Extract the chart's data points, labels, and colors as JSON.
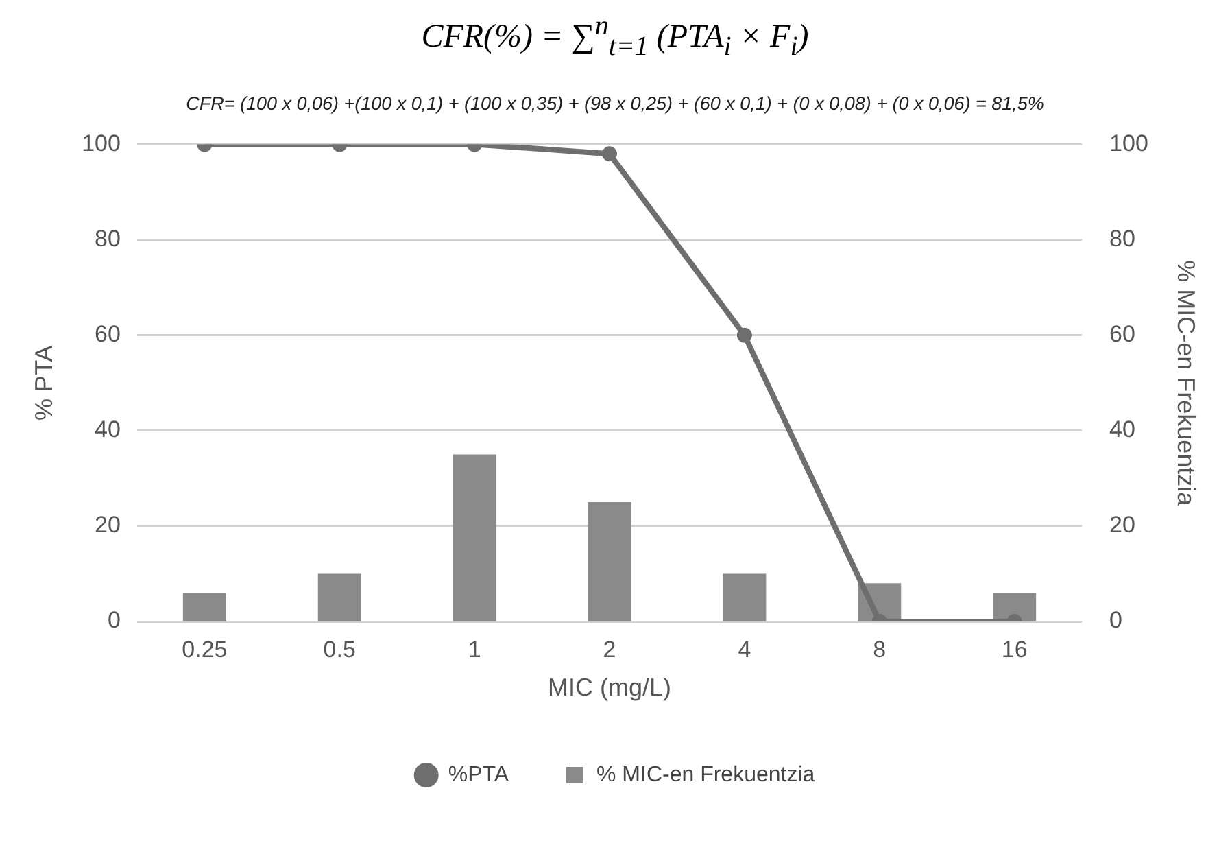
{
  "chart_data": {
    "type": "bar",
    "title": "CFR(%) = ∑$^{n}$$_{t=1}$ (PTA$_{i}$ × F$_{i}$)",
    "subtitle": "CFR= (100 x 0,06) +(100 x 0,1) + (100 x 0,35) + (98 x 0,25) + (60 x 0,1) + (0 x 0,08) + (0 x 0,06) = 81,5%",
    "xlabel": "MIC (mg/L)",
    "ylabel": "% PTA",
    "y2label": "% MIC-en Frekuentzia",
    "categories": [
      "0.25",
      "0.5",
      "1",
      "2",
      "4",
      "8",
      "16"
    ],
    "series": [
      {
        "name": "% MIC-en Frekuentzia",
        "axis": "y2",
        "color": "#8a8a8a",
        "values": [
          6,
          10,
          35,
          25,
          10,
          8,
          6
        ]
      },
      {
        "name": "%PTA",
        "type": "line",
        "axis": "y",
        "color": "#6e6e6e",
        "values": [
          100,
          100,
          100,
          98,
          60,
          0,
          0
        ]
      }
    ],
    "ylim": [
      0,
      100
    ],
    "yticks": [
      0,
      20,
      40,
      60,
      80,
      100
    ],
    "y2lim": [
      0,
      100
    ],
    "y2ticks": [
      0,
      20,
      40,
      60,
      80,
      100
    ],
    "grid": "y",
    "legend": "bottom",
    "marker": "circle",
    "line_style": "solid"
  }
}
